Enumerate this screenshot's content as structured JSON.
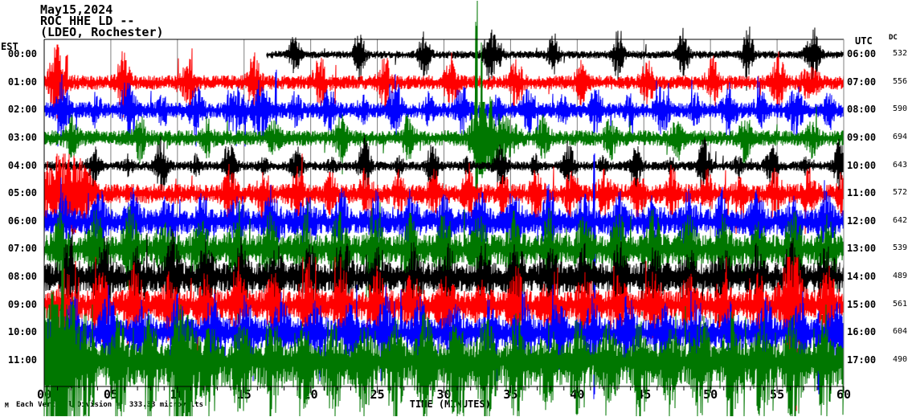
{
  "header": {
    "date": "May15,2024",
    "station_line": "ROC HHE LD --",
    "location_line": "(LDEO, Rochester)"
  },
  "axis": {
    "left_header": "EST",
    "right_header": "UTC",
    "dc_header": "DC",
    "x_title": "TIME (MINUTES)",
    "x_tick_labels": [
      "00",
      "05",
      "10",
      "15",
      "20",
      "25",
      "30",
      "35",
      "40",
      "45",
      "50",
      "55",
      "60"
    ],
    "footnote": "Each Vertical Division =  333.33 microvolts",
    "logo_glyph": "M"
  },
  "colors": {
    "background": "#ffffff",
    "axis": "#000000",
    "grid": "#808080",
    "trace_black": "#000000",
    "trace_red": "#ff0000",
    "trace_blue": "#0000ff",
    "trace_green": "#007700"
  },
  "chart_data": {
    "type": "line",
    "subtype": "helicorder-seismogram",
    "title": "ROC HHE LD -- (LDEO, Rochester) May15,2024",
    "xlabel": "TIME (MINUTES)",
    "x_range_minutes": [
      0,
      60
    ],
    "x_major_tick": 5,
    "x_minor_tick": 1,
    "vertical_division_microvolts": 333.33,
    "legend_position": "none",
    "grid": "vertical-5min",
    "rows": [
      {
        "est": "00:00",
        "utc": "06:00",
        "dc": "532",
        "color": "#000000",
        "start_minute": 16.7,
        "base_amp": 3.5,
        "seed": 101,
        "trains": [
          [
            18.8,
            4.86,
            0.38,
            6
          ]
        ],
        "bursts": [
          [
            34.0,
            0.5,
            3
          ],
          [
            57.7,
            0.5,
            3
          ]
        ],
        "events": [],
        "spike_p": 0.012,
        "spike_gain": 1.5,
        "cap": 45,
        "up_bias": 1,
        "dn_bias": 1
      },
      {
        "est": "01:00",
        "utc": "07:00",
        "dc": "556",
        "color": "#ff0000",
        "start_minute": 0,
        "base_amp": 6.5,
        "seed": 202,
        "trains": [
          [
            1.0,
            4.92,
            0.45,
            3.2
          ]
        ],
        "bursts": [
          [
            0.9,
            0.7,
            2
          ],
          [
            57.4,
            0.7,
            1.5
          ]
        ],
        "events": [
          [
            1.0,
            46,
            16,
            3
          ],
          [
            1.7,
            38,
            14,
            2
          ]
        ],
        "spike_p": 0.02,
        "spike_gain": 1.5,
        "cap": 45,
        "up_bias": 1,
        "dn_bias": 1
      },
      {
        "est": "02:00",
        "utc": "08:00",
        "dc": "590",
        "color": "#0000ff",
        "start_minute": 0,
        "base_amp": 7,
        "seed": 303,
        "trains": [
          [
            1.4,
            5.0,
            0.45,
            2.6
          ],
          [
            3.9,
            5.0,
            0.33,
            1.5
          ]
        ],
        "bursts": [
          [
            14.5,
            0.6,
            2
          ],
          [
            15.9,
            0.4,
            1.5
          ]
        ],
        "events": [
          [
            17.4,
            52,
            18,
            1
          ]
        ],
        "spike_p": 0.02,
        "spike_gain": 1.5,
        "cap": 45,
        "up_bias": 1,
        "dn_bias": 1
      },
      {
        "est": "03:00",
        "utc": "09:00",
        "dc": "694",
        "color": "#007700",
        "start_minute": 0,
        "base_amp": 7,
        "seed": 404,
        "trains": [
          [
            2.1,
            5.05,
            0.42,
            2.2
          ]
        ],
        "bursts": [
          [
            32.6,
            0.5,
            3
          ],
          [
            33.3,
            0.7,
            2.5
          ],
          [
            34.6,
            0.9,
            2
          ]
        ],
        "events": [
          [
            32.45,
            171,
            80,
            2
          ],
          [
            32.85,
            118,
            55,
            1
          ],
          [
            33.5,
            58,
            40,
            2
          ]
        ],
        "spike_p": 0.02,
        "spike_gain": 1.5,
        "cap": 45,
        "up_bias": 1,
        "dn_bias": 1
      },
      {
        "est": "04:00",
        "utc": "10:00",
        "dc": "643",
        "color": "#000000",
        "start_minute": 0,
        "base_amp": 4.2,
        "seed": 505,
        "trains": [
          [
            3.7,
            5.09,
            0.42,
            4.8
          ],
          [
            6.3,
            5.09,
            0.3,
            1.6
          ]
        ],
        "bursts": [],
        "events": [],
        "spike_p": 0.015,
        "spike_gain": 1.5,
        "cap": 40,
        "up_bias": 1,
        "dn_bias": 1
      },
      {
        "est": "05:00",
        "utc": "11:00",
        "dc": "572",
        "color": "#ff0000",
        "start_minute": 0,
        "base_amp": 9,
        "seed": 606,
        "trains": [
          [
            13.9,
            2.56,
            0.4,
            1.9
          ]
        ],
        "bursts": [
          [
            0.6,
            1.4,
            2.4
          ],
          [
            1.9,
            0.9,
            2.4
          ],
          [
            3.1,
            0.7,
            1.8
          ]
        ],
        "events": [],
        "spike_p": 0.025,
        "spike_gain": 1.5,
        "cap": 50,
        "up_bias": 1,
        "dn_bias": 1
      },
      {
        "est": "06:00",
        "utc": "12:00",
        "dc": "642",
        "color": "#0000ff",
        "start_minute": 0,
        "base_amp": 11,
        "seed": 707,
        "trains": [
          [
            1.5,
            2.6,
            0.48,
            1.7
          ]
        ],
        "bursts": [],
        "events": [
          [
            41.3,
            85,
            240,
            1
          ]
        ],
        "spike_p": 0.03,
        "spike_gain": 1.6,
        "cap": 55,
        "up_bias": 1,
        "dn_bias": 1
      },
      {
        "est": "07:00",
        "utc": "13:00",
        "dc": "539",
        "color": "#007700",
        "start_minute": 0,
        "base_amp": 13,
        "seed": 808,
        "trains": [
          [
            1.2,
            2.62,
            0.52,
            1.8
          ]
        ],
        "bursts": [],
        "events": [],
        "spike_p": 0.03,
        "spike_gain": 1.7,
        "cap": 60,
        "up_bias": 1,
        "dn_bias": 1
      },
      {
        "est": "08:00",
        "utc": "14:00",
        "dc": "489",
        "color": "#000000",
        "start_minute": 0,
        "base_amp": 13,
        "seed": 909,
        "trains": [
          [
            1.9,
            2.58,
            0.5,
            1.7
          ]
        ],
        "bursts": [],
        "events": [],
        "spike_p": 0.035,
        "spike_gain": 1.7,
        "cap": 60,
        "up_bias": 1,
        "dn_bias": 1
      },
      {
        "est": "09:00",
        "utc": "15:00",
        "dc": "561",
        "color": "#ff0000",
        "start_minute": 0,
        "base_amp": 13,
        "seed": 1010,
        "trains": [
          [
            1.6,
            2.6,
            0.5,
            1.7
          ]
        ],
        "bursts": [
          [
            56.0,
            0.8,
            2.2
          ]
        ],
        "events": [
          [
            56.4,
            30,
            132,
            1
          ]
        ],
        "spike_p": 0.035,
        "spike_gain": 1.7,
        "cap": 60,
        "up_bias": 1,
        "dn_bias": 1
      },
      {
        "est": "10:00",
        "utc": "16:00",
        "dc": "604",
        "color": "#0000ff",
        "start_minute": 0,
        "base_amp": 13,
        "seed": 1111,
        "trains": [
          [
            2.2,
            2.6,
            0.5,
            1.7
          ]
        ],
        "bursts": [],
        "events": [
          [
            31.0,
            30,
            104,
            1
          ],
          [
            58.1,
            30,
            90,
            1
          ]
        ],
        "spike_p": 0.035,
        "spike_gain": 1.7,
        "cap": 60,
        "up_bias": 1,
        "dn_bias": 1
      },
      {
        "est": "11:00",
        "utc": "17:00",
        "dc": "490",
        "color": "#007700",
        "start_minute": 0,
        "base_amp": 15,
        "seed": 1212,
        "trains": [
          [
            1.0,
            2.3,
            0.55,
            1.8
          ]
        ],
        "bursts": [
          [
            0.8,
            1.2,
            3
          ],
          [
            1.6,
            1.0,
            3.5
          ],
          [
            10.8,
            0.7,
            2
          ]
        ],
        "events": [
          [
            0.6,
            95,
            70,
            2
          ],
          [
            1.4,
            148,
            70,
            2
          ],
          [
            2.2,
            80,
            70,
            2
          ],
          [
            10.8,
            55,
            70,
            2
          ]
        ],
        "spike_p": 0.04,
        "spike_gain": 1.8,
        "cap": 70,
        "up_bias": 1,
        "dn_bias": 1.45
      }
    ]
  }
}
